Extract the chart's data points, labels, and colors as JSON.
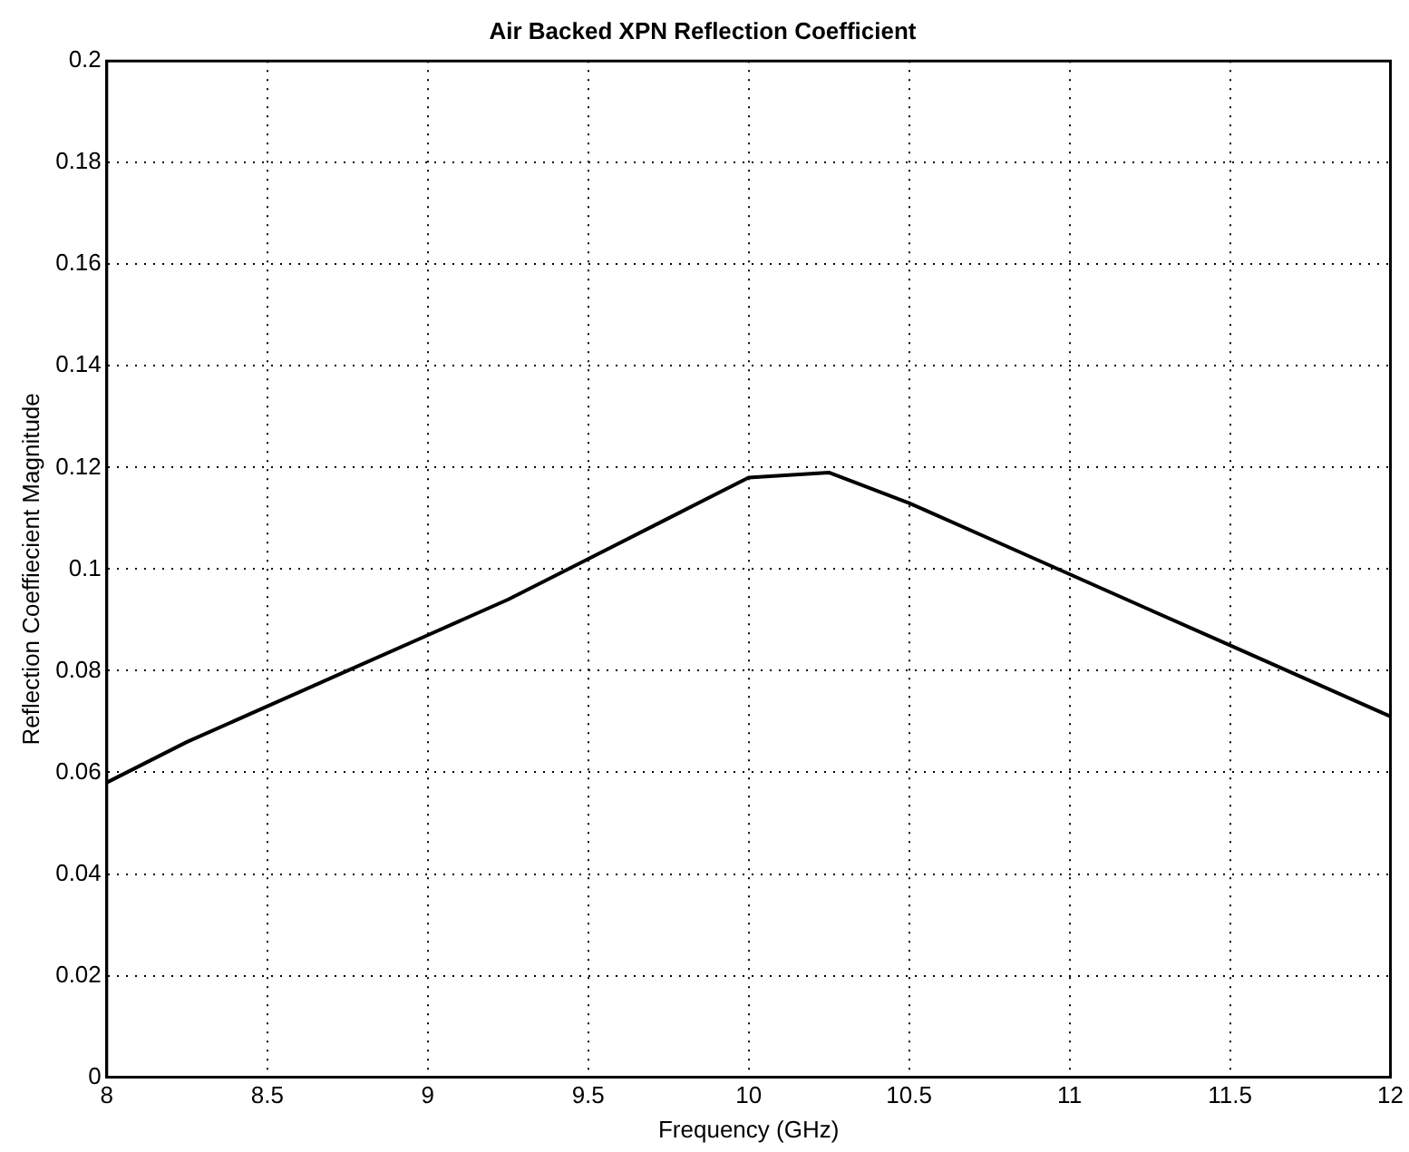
{
  "chart_data": {
    "type": "line",
    "title": "Air Backed XPN Reflection Coefficient",
    "xlabel": "Frequency (GHz)",
    "ylabel": "Reflection Coeffiecient Magnitude",
    "x": [
      8,
      8.25,
      8.5,
      8.75,
      9,
      9.25,
      9.5,
      9.75,
      10,
      10.25,
      10.5,
      10.75,
      11,
      11.25,
      11.5,
      11.75,
      12
    ],
    "series": [
      {
        "color": "#000000",
        "values": [
          0.058,
          0.066,
          0.073,
          0.08,
          0.087,
          0.094,
          0.102,
          0.11,
          0.118,
          0.119,
          0.113,
          0.106,
          0.099,
          0.092,
          0.085,
          0.078,
          0.071
        ]
      }
    ],
    "xlim": [
      8,
      12
    ],
    "xticks": [
      8,
      8.5,
      9,
      9.5,
      10,
      10.5,
      11,
      11.5,
      12
    ],
    "ylim": [
      0,
      0.2
    ],
    "yticks": [
      0,
      0.02,
      0.04,
      0.06,
      0.08,
      0.1,
      0.12,
      0.14,
      0.16,
      0.18,
      0.2
    ],
    "grid": true,
    "legend": false,
    "marker": "none",
    "line_style": "solid"
  }
}
